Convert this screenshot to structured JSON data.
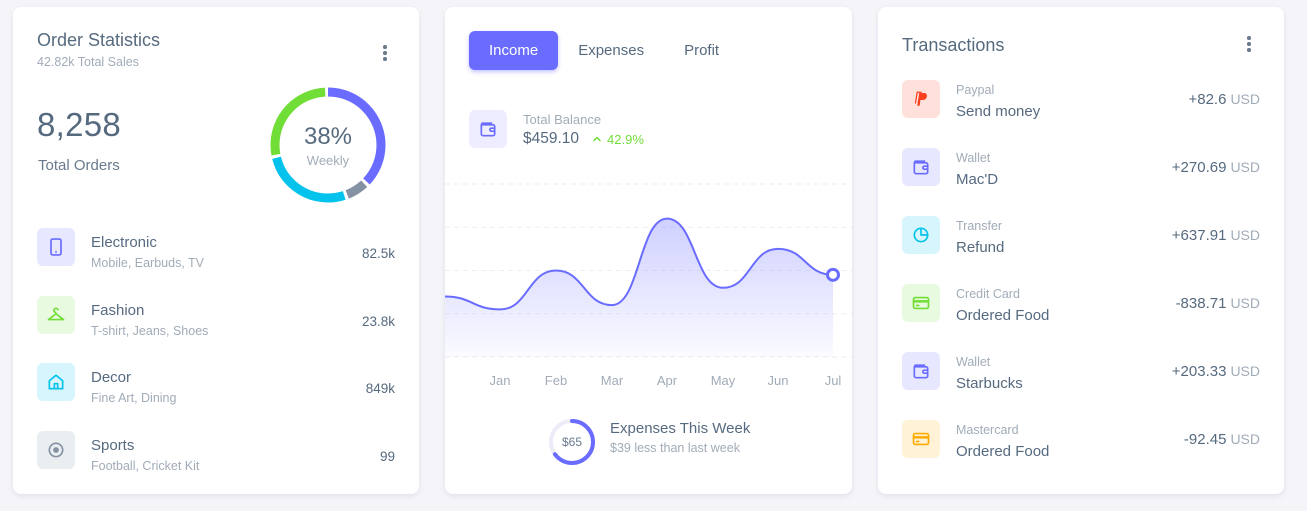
{
  "order_stats": {
    "title": "Order Statistics",
    "subtitle": "42.82k Total Sales",
    "total_orders": "8,258",
    "total_orders_label": "Total Orders",
    "donut": {
      "percent_label": "38%",
      "period_label": "Weekly",
      "segments": [
        {
          "name": "Electronic",
          "percent": 38,
          "color": "#696cff"
        },
        {
          "name": "Sports",
          "percent": 7,
          "color": "#8592a3"
        },
        {
          "name": "Decor",
          "percent": 27,
          "color": "#03c3ec"
        },
        {
          "name": "Fashion",
          "percent": 28,
          "color": "#71dd37"
        }
      ]
    },
    "items": [
      {
        "name": "Electronic",
        "desc": "Mobile, Earbuds, TV",
        "value": "82.5k",
        "icon": "mobile-icon",
        "color": "#696cff",
        "bg": "#e7e7ff"
      },
      {
        "name": "Fashion",
        "desc": "T-shirt, Jeans, Shoes",
        "value": "23.8k",
        "icon": "hanger-icon",
        "color": "#71dd37",
        "bg": "#e8fadf"
      },
      {
        "name": "Decor",
        "desc": "Fine Art, Dining",
        "value": "849k",
        "icon": "home-icon",
        "color": "#03c3ec",
        "bg": "#d7f5fc"
      },
      {
        "name": "Sports",
        "desc": "Football, Cricket Kit",
        "value": "99",
        "icon": "football-icon",
        "color": "#8592a3",
        "bg": "#ebeef0"
      }
    ]
  },
  "income": {
    "tabs": [
      {
        "label": "Income",
        "active": true
      },
      {
        "label": "Expenses",
        "active": false
      },
      {
        "label": "Profit",
        "active": false
      }
    ],
    "balance_label": "Total Balance",
    "balance_value": "$459.10",
    "balance_change": "42.9%",
    "week_ring_value": "$65",
    "week_ring_percent": 65,
    "week_title": "Expenses This Week",
    "week_subtitle": "$39 less than last week"
  },
  "chart_data": {
    "type": "area",
    "categories": [
      "",
      "Jan",
      "Feb",
      "Mar",
      "Apr",
      "May",
      "Jun",
      "Jul"
    ],
    "series": [
      {
        "values": [
          24,
          21,
          30,
          22,
          42,
          26,
          35,
          29
        ]
      }
    ],
    "ylim": [
      10,
      50
    ],
    "grid": true,
    "color": "#696cff"
  },
  "transactions": {
    "title": "Transactions",
    "currency": "USD",
    "items": [
      {
        "type": "Paypal",
        "desc": "Send money",
        "amount": "+82.6",
        "icon": "paypal-icon",
        "color": "#ff3e1d",
        "bg": "#ffe0db"
      },
      {
        "type": "Wallet",
        "desc": "Mac'D",
        "amount": "+270.69",
        "icon": "wallet-icon",
        "color": "#696cff",
        "bg": "#e7e7ff"
      },
      {
        "type": "Transfer",
        "desc": "Refund",
        "amount": "+637.91",
        "icon": "pie-chart-icon",
        "color": "#03c3ec",
        "bg": "#d7f5fc"
      },
      {
        "type": "Credit Card",
        "desc": "Ordered Food",
        "amount": "-838.71",
        "icon": "credit-card-icon",
        "color": "#71dd37",
        "bg": "#e8fadf"
      },
      {
        "type": "Wallet",
        "desc": "Starbucks",
        "amount": "+203.33",
        "icon": "wallet-icon",
        "color": "#696cff",
        "bg": "#e7e7ff"
      },
      {
        "type": "Mastercard",
        "desc": "Ordered Food",
        "amount": "-92.45",
        "icon": "credit-card-icon",
        "color": "#ffab00",
        "bg": "#fff2d6"
      }
    ]
  }
}
